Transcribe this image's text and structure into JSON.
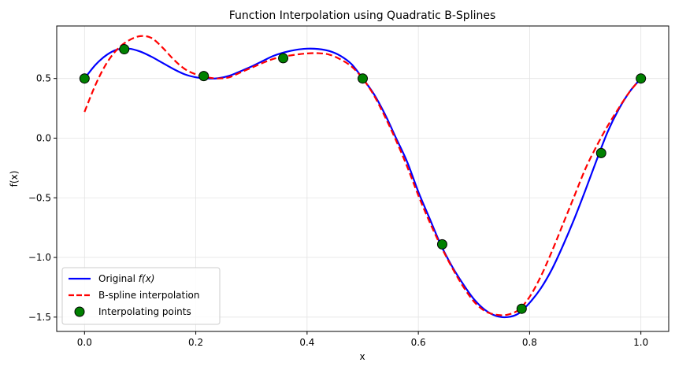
{
  "chart_data": {
    "type": "line",
    "title": "Function Interpolation using Quadratic B-Splines",
    "xlabel": "x",
    "ylabel": "f(x)",
    "xlim": [
      -0.05,
      1.05
    ],
    "ylim": [
      -1.62,
      0.94
    ],
    "xticks": [
      0.0,
      0.2,
      0.4,
      0.6,
      0.8,
      1.0
    ],
    "xtick_labels": [
      "0.0",
      "0.2",
      "0.4",
      "0.6",
      "0.8",
      "1.0"
    ],
    "yticks": [
      0.5,
      0.0,
      -0.5,
      -1.0,
      -1.5
    ],
    "ytick_labels": [
      "0.5",
      "0.0",
      "−0.5",
      "−1.0",
      "−1.5"
    ],
    "grid": true,
    "legend_position": "lower-left",
    "series": [
      {
        "name": "Original f(x)",
        "style": "solid",
        "color": "#0000ff",
        "x": [
          0.0,
          0.02,
          0.04,
          0.06,
          0.08,
          0.1,
          0.12,
          0.14,
          0.16,
          0.18,
          0.2,
          0.22,
          0.24,
          0.26,
          0.28,
          0.3,
          0.32,
          0.34,
          0.36,
          0.38,
          0.4,
          0.42,
          0.44,
          0.46,
          0.48,
          0.5,
          0.52,
          0.54,
          0.56,
          0.58,
          0.6,
          0.62,
          0.64,
          0.66,
          0.68,
          0.7,
          0.72,
          0.74,
          0.76,
          0.78,
          0.8,
          0.82,
          0.84,
          0.86,
          0.88,
          0.9,
          0.92,
          0.94,
          0.96,
          0.98,
          1.0
        ],
        "y": [
          0.5,
          0.616,
          0.698,
          0.744,
          0.75,
          0.726,
          0.683,
          0.631,
          0.579,
          0.535,
          0.51,
          0.5,
          0.502,
          0.522,
          0.56,
          0.6,
          0.646,
          0.69,
          0.72,
          0.74,
          0.75,
          0.747,
          0.73,
          0.69,
          0.62,
          0.5,
          0.37,
          0.2,
          0.0,
          -0.2,
          -0.45,
          -0.67,
          -0.89,
          -1.07,
          -1.22,
          -1.35,
          -1.44,
          -1.49,
          -1.5,
          -1.47,
          -1.38,
          -1.26,
          -1.1,
          -0.9,
          -0.68,
          -0.44,
          -0.19,
          0.05,
          0.24,
          0.39,
          0.5
        ]
      },
      {
        "name": "B-spline interpolation",
        "style": "dashed",
        "color": "#ff0000",
        "x": [
          0.0,
          0.02,
          0.04,
          0.06,
          0.08,
          0.1,
          0.12,
          0.14,
          0.16,
          0.18,
          0.2,
          0.22,
          0.24,
          0.26,
          0.28,
          0.3,
          0.32,
          0.34,
          0.36,
          0.38,
          0.4,
          0.42,
          0.44,
          0.46,
          0.48,
          0.5,
          0.52,
          0.54,
          0.56,
          0.58,
          0.6,
          0.62,
          0.64,
          0.66,
          0.68,
          0.7,
          0.72,
          0.74,
          0.76,
          0.78,
          0.8,
          0.82,
          0.84,
          0.86,
          0.88,
          0.9,
          0.92,
          0.94,
          0.96,
          0.98,
          1.0
        ],
        "y": [
          0.22,
          0.45,
          0.63,
          0.75,
          0.82,
          0.855,
          0.84,
          0.76,
          0.66,
          0.58,
          0.535,
          0.51,
          0.5,
          0.51,
          0.55,
          0.59,
          0.63,
          0.665,
          0.685,
          0.7,
          0.71,
          0.712,
          0.7,
          0.66,
          0.6,
          0.5,
          0.36,
          0.18,
          -0.02,
          -0.24,
          -0.48,
          -0.7,
          -0.9,
          -1.08,
          -1.24,
          -1.37,
          -1.45,
          -1.48,
          -1.48,
          -1.44,
          -1.33,
          -1.16,
          -0.95,
          -0.72,
          -0.49,
          -0.26,
          -0.07,
          0.1,
          0.25,
          0.39,
          0.5
        ]
      }
    ],
    "points": {
      "name": "Interpolating points",
      "color": "#008000",
      "x": [
        0.0,
        0.0714,
        0.2143,
        0.3571,
        0.5,
        0.6429,
        0.7857,
        0.9286,
        1.0
      ],
      "y": [
        0.5,
        0.745,
        0.52,
        0.67,
        0.5,
        -0.89,
        -1.43,
        -0.125,
        0.5
      ]
    },
    "legend": [
      {
        "label_prefix": "Original ",
        "label_math": "f(x)",
        "kind": "line-solid",
        "color": "#0000ff"
      },
      {
        "label_prefix": "B-spline interpolation",
        "label_math": "",
        "kind": "line-dashed",
        "color": "#ff0000"
      },
      {
        "label_prefix": "Interpolating points",
        "label_math": "",
        "kind": "marker",
        "color": "#008000"
      }
    ]
  }
}
